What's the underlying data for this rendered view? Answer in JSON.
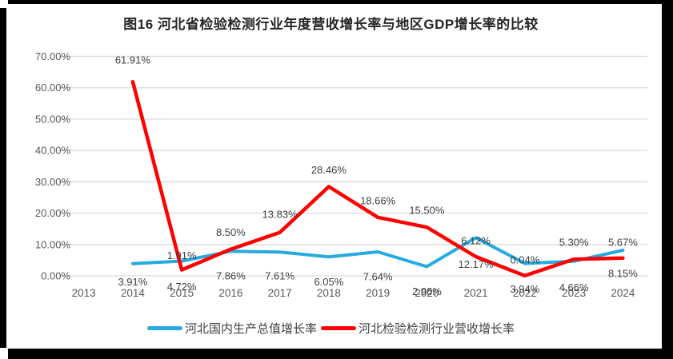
{
  "title": "图16 河北省检验检测行业年度营收增长率与地区GDP增长率的比较",
  "colors": {
    "gdp_line": "#27A9E1",
    "revenue_line": "#FF0000",
    "gridline": "#D9D9D9",
    "axis_text": "#595959",
    "data_label_text": "#404040",
    "title_text": "#262626",
    "frame": "#000000"
  },
  "chart_data": {
    "type": "line",
    "title": "图16 河北省检验检测行业年度营收增长率与地区GDP增长率的比较",
    "categories": [
      "2013",
      "2014",
      "2015",
      "2016",
      "2017",
      "2018",
      "2019",
      "2020",
      "2021",
      "2022",
      "2023",
      "2024"
    ],
    "series": [
      {
        "name": "河北国内生产总值增长率",
        "color": "#27A9E1",
        "label_position": "below",
        "values": [
          null,
          3.91,
          4.72,
          7.86,
          7.61,
          6.05,
          7.64,
          2.96,
          12.17,
          3.94,
          4.66,
          8.15
        ]
      },
      {
        "name": "河北检验检测行业营收增长率",
        "color": "#FF0000",
        "label_position": "above",
        "values": [
          null,
          61.91,
          1.91,
          8.5,
          13.83,
          28.46,
          18.66,
          15.5,
          6.12,
          0.04,
          5.3,
          5.67
        ]
      }
    ],
    "value_format": "0.00%",
    "y_ticks": [
      "0.00%",
      "10.00%",
      "20.00%",
      "30.00%",
      "40.00%",
      "50.00%",
      "60.00%",
      "70.00%"
    ],
    "ylim": [
      0,
      70
    ],
    "grid": true,
    "legend_position": "bottom",
    "xlabel": "",
    "ylabel": ""
  }
}
